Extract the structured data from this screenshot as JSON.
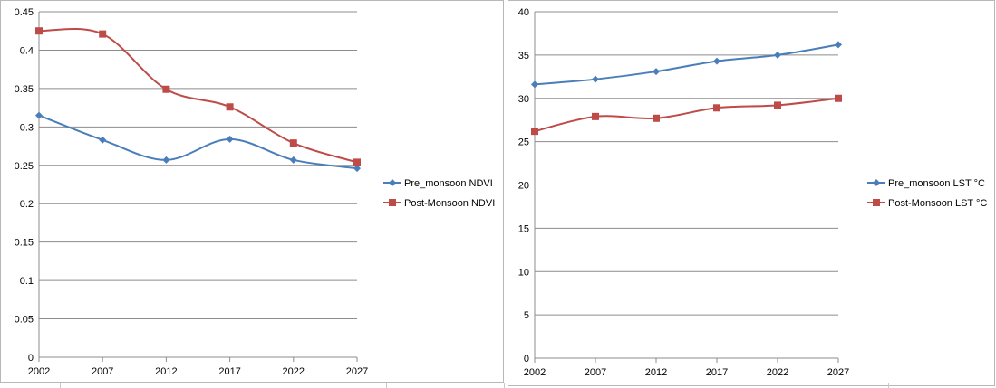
{
  "colors": {
    "series_blue": "#4a7ebb",
    "series_red": "#be4b48",
    "gridline": "#8c8c8c"
  },
  "chart_data": [
    {
      "type": "line",
      "categories": [
        "2002",
        "2007",
        "2012",
        "2017",
        "2022",
        "2027"
      ],
      "series": [
        {
          "name": "Pre_monsoon NDVI",
          "values": [
            0.315,
            0.283,
            0.257,
            0.284,
            0.257,
            0.246
          ],
          "color": "#4a7ebb",
          "marker": "diamond"
        },
        {
          "name": "Post-Monsoon NDVI",
          "values": [
            0.425,
            0.421,
            0.349,
            0.326,
            0.279,
            0.254
          ],
          "color": "#be4b48",
          "marker": "square"
        }
      ],
      "yticks": [
        "0",
        "0.05",
        "0.1",
        "0.15",
        "0.2",
        "0.25",
        "0.3",
        "0.35",
        "0.4",
        "0.45"
      ],
      "ylim": [
        0,
        0.45
      ],
      "grid": true,
      "smooth": true,
      "legend": "right"
    },
    {
      "type": "line",
      "categories": [
        "2002",
        "2007",
        "2012",
        "2017",
        "2022",
        "2027"
      ],
      "series": [
        {
          "name": "Pre_monsoon LST  °C",
          "values": [
            31.6,
            32.2,
            33.1,
            34.3,
            35.0,
            36.2
          ],
          "color": "#4a7ebb",
          "marker": "diamond"
        },
        {
          "name": "Post-Monsoon LST °C",
          "values": [
            26.2,
            27.9,
            27.7,
            28.9,
            29.2,
            30.0
          ],
          "color": "#be4b48",
          "marker": "square"
        }
      ],
      "yticks": [
        "0",
        "5",
        "10",
        "15",
        "20",
        "25",
        "30",
        "35",
        "40"
      ],
      "ylim": [
        0,
        40
      ],
      "grid": true,
      "smooth": true,
      "legend": "right"
    }
  ]
}
